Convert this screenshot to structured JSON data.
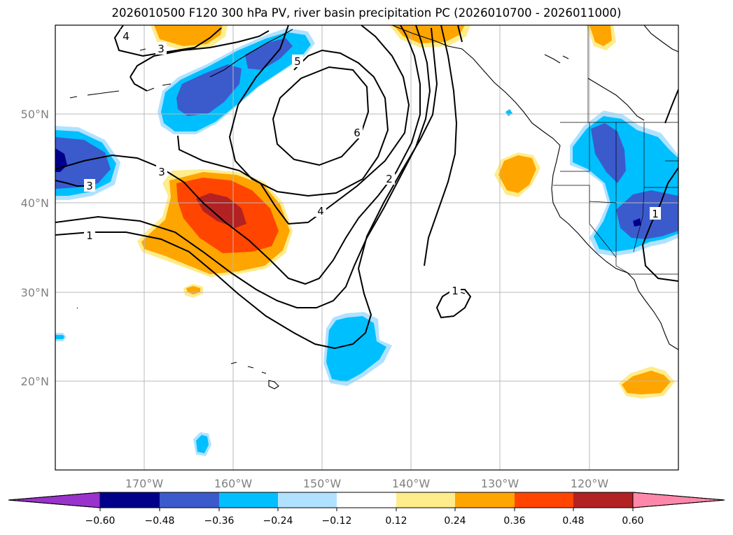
{
  "title": "2026010500 F120 300 hPa PV, river basin precipitation PC (2026010700 - 2026011000)",
  "lat_labels": [
    "50°N",
    "40°N",
    "30°N",
    "20°N"
  ],
  "lon_labels": [
    "170°W",
    "160°W",
    "150°W",
    "140°W",
    "130°W",
    "120°W"
  ],
  "colorbar": {
    "colors": [
      "#9933cc",
      "#00008b",
      "#3b5bcc",
      "#00bfff",
      "#b0e2ff",
      "#ffffff",
      "#ffec8b",
      "#ffa500",
      "#ff4500",
      "#b22222",
      "#ff88aa"
    ],
    "labels": [
      "−0.60",
      "−0.48",
      "−0.36",
      "−0.24",
      "−0.12",
      "0.12",
      "0.24",
      "0.36",
      "0.48",
      "0.60"
    ]
  },
  "contour_labels": [
    "4",
    "3",
    "5",
    "6",
    "3",
    "3",
    "1",
    "4",
    "2",
    "1",
    "1"
  ]
}
